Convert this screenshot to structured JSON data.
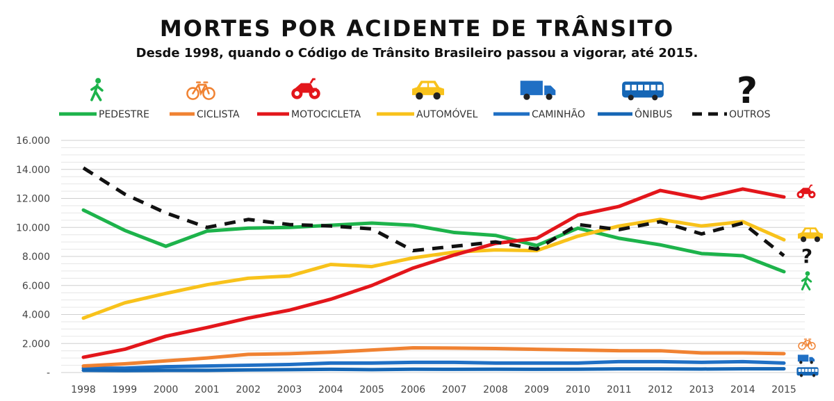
{
  "chart_data": {
    "type": "line",
    "title": "MORTES POR ACIDENTE DE TRÂNSITO",
    "subtitle": "Desde 1998, quando o Código de Trânsito Brasileiro passou a vigorar, até 2015.",
    "x": [
      "1998",
      "1999",
      "2000",
      "2001",
      "2002",
      "2003",
      "2004",
      "2005",
      "2006",
      "2007",
      "2008",
      "2009",
      "2010",
      "2011",
      "2012",
      "2013",
      "2014",
      "2015"
    ],
    "ylim": [
      0,
      16000
    ],
    "yticks": [
      "-",
      "2.000",
      "4.000",
      "6.000",
      "8.000",
      "10.000",
      "12.000",
      "14.000",
      "16.000"
    ],
    "grid": true,
    "legend_position": "top",
    "series": [
      {
        "name": "PEDESTRE",
        "color": "#1db34b",
        "dashed": false,
        "icon": "pedestrian-icon",
        "values": [
          11200,
          9800,
          8700,
          9750,
          9950,
          10000,
          10150,
          10300,
          10150,
          9650,
          9450,
          8750,
          9950,
          9250,
          8800,
          8200,
          8050,
          6950
        ]
      },
      {
        "name": "CICLISTA",
        "color": "#f08232",
        "dashed": false,
        "icon": "bicycle-icon",
        "values": [
          450,
          600,
          800,
          1000,
          1250,
          1300,
          1400,
          1550,
          1700,
          1680,
          1650,
          1600,
          1550,
          1500,
          1500,
          1350,
          1350,
          1300
        ]
      },
      {
        "name": "MOTOCICLETA",
        "color": "#e3161b",
        "dashed": false,
        "icon": "motorcycle-icon",
        "values": [
          1050,
          1600,
          2500,
          3100,
          3750,
          4300,
          5050,
          6000,
          7200,
          8100,
          8900,
          9250,
          10850,
          11450,
          12550,
          12000,
          12650,
          12100
        ]
      },
      {
        "name": "AUTOMÓVEL",
        "color": "#f8c21b",
        "dashed": false,
        "icon": "car-icon",
        "values": [
          3750,
          4800,
          5450,
          6050,
          6500,
          6650,
          7450,
          7300,
          7900,
          8300,
          8450,
          8400,
          9400,
          10100,
          10550,
          10100,
          10400,
          9150
        ]
      },
      {
        "name": "CAMINHÃO",
        "color": "#1f6fc4",
        "dashed": false,
        "icon": "truck-icon",
        "values": [
          300,
          300,
          400,
          450,
          500,
          550,
          650,
          650,
          700,
          700,
          650,
          650,
          650,
          750,
          750,
          700,
          750,
          650
        ]
      },
      {
        "name": "ÔNIBUS",
        "color": "#1566b5",
        "dashed": false,
        "icon": "bus-icon",
        "values": [
          150,
          130,
          150,
          150,
          180,
          200,
          220,
          200,
          230,
          220,
          230,
          220,
          230,
          250,
          250,
          240,
          260,
          260
        ]
      },
      {
        "name": "OUTROS",
        "color": "#111111",
        "dashed": true,
        "icon": "question-mark-icon",
        "values": [
          14100,
          12300,
          11000,
          10000,
          10550,
          10200,
          10100,
          9900,
          8400,
          8700,
          9000,
          8500,
          10200,
          9850,
          10400,
          9550,
          10300,
          8050
        ]
      }
    ]
  }
}
